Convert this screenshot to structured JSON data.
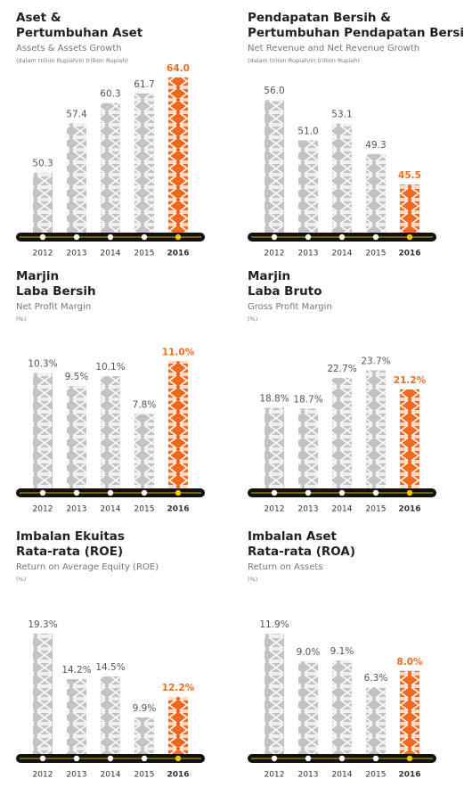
{
  "chart_data": [
    {
      "type": "bar",
      "title": [
        "Aset &",
        "Pertumbuhan Aset"
      ],
      "subtitle": "Assets & Assets Growth",
      "note": "(dalam triliun Rupiah/in trillion Rupiah)",
      "categories": [
        "2012",
        "2013",
        "2014",
        "2015",
        "2016"
      ],
      "values": [
        50.3,
        57.4,
        60.3,
        61.7,
        64.0
      ],
      "value_labels": [
        "50.3",
        "57.4",
        "60.3",
        "61.7",
        "64.0"
      ],
      "colors": [
        "#c3c3c3",
        "#c3c3c3",
        "#c3c3c3",
        "#c3c3c3",
        "#f26a21"
      ],
      "ylim": [
        41,
        65.4
      ]
    },
    {
      "type": "bar",
      "title": [
        "Pendapatan Bersih &",
        "Pertumbuhan Pendapatan Bersih"
      ],
      "subtitle": "Net Revenue and Net Revenue Growth",
      "note": "(dalam triliun Rupiah/in trillion Rupiah)",
      "categories": [
        "2012",
        "2013",
        "2014",
        "2015",
        "2016"
      ],
      "values": [
        56.0,
        51.0,
        53.1,
        49.3,
        45.5
      ],
      "value_labels": [
        "56.0",
        "51.0",
        "53.1",
        "49.3",
        "45.5"
      ],
      "colors": [
        "#c3c3c3",
        "#c3c3c3",
        "#c3c3c3",
        "#c3c3c3",
        "#f26a21"
      ],
      "ylim": [
        39,
        60
      ]
    },
    {
      "type": "bar",
      "title": [
        "Marjin",
        "Laba Bersih"
      ],
      "subtitle": "Net Profit Margin",
      "note": "(%)",
      "categories": [
        "2012",
        "2013",
        "2014",
        "2015",
        "2016"
      ],
      "values": [
        10.3,
        9.5,
        10.1,
        7.8,
        11.0
      ],
      "value_labels": [
        "10.3%",
        "9.5%",
        "10.1%",
        "7.8%",
        "11.0%"
      ],
      "colors": [
        "#c3c3c3",
        "#c3c3c3",
        "#c3c3c3",
        "#c3c3c3",
        "#f26a21"
      ],
      "ylim": [
        3,
        13.3
      ]
    },
    {
      "type": "bar",
      "title": [
        "Marjin",
        "Laba Bruto"
      ],
      "subtitle": "Gross Profit Margin",
      "note": "(%)",
      "categories": [
        "2012",
        "2013",
        "2014",
        "2015",
        "2016"
      ],
      "values": [
        18.8,
        18.7,
        22.7,
        23.7,
        21.2
      ],
      "value_labels": [
        "18.8%",
        "18.7%",
        "22.7%",
        "23.7%",
        "21.2%"
      ],
      "colors": [
        "#c3c3c3",
        "#c3c3c3",
        "#c3c3c3",
        "#c3c3c3",
        "#f26a21"
      ],
      "ylim": [
        7.7,
        29.8
      ]
    },
    {
      "type": "bar",
      "title": [
        "Imbalan Ekuitas",
        "Rata-rata (ROE)"
      ],
      "subtitle": "Return on Average Equity (ROE)",
      "note": "(%)",
      "categories": [
        "2012",
        "2013",
        "2014",
        "2015",
        "2016"
      ],
      "values": [
        19.3,
        14.2,
        14.5,
        9.9,
        12.2
      ],
      "value_labels": [
        "19.3%",
        "14.2%",
        "14.5%",
        "9.9%",
        "12.2%"
      ],
      "colors": [
        "#c3c3c3",
        "#c3c3c3",
        "#c3c3c3",
        "#c3c3c3",
        "#f26a21"
      ],
      "ylim": [
        5.3,
        24.3
      ]
    },
    {
      "type": "bar",
      "title": [
        "Imbalan Aset",
        "Rata-rata (ROA)"
      ],
      "subtitle": "Return on Assets",
      "note": "(%)",
      "categories": [
        "2012",
        "2013",
        "2014",
        "2015",
        "2016"
      ],
      "values": [
        11.9,
        9.0,
        9.1,
        6.3,
        8.0
      ],
      "value_labels": [
        "11.9%",
        "9.0%",
        "9.1%",
        "6.3%",
        "8.0%"
      ],
      "colors": [
        "#c3c3c3",
        "#c3c3c3",
        "#c3c3c3",
        "#c3c3c3",
        "#f26a21"
      ],
      "ylim": [
        -1.2,
        16.6
      ]
    }
  ]
}
